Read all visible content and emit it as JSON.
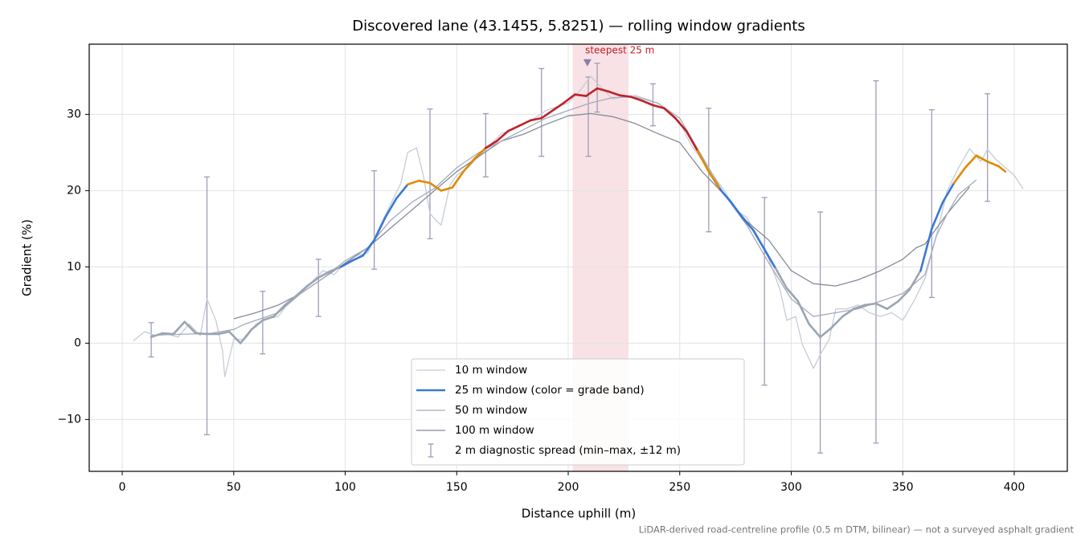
{
  "chart_data": {
    "type": "line",
    "title": "Discovered lane (43.1455, 5.8251) — rolling window gradients",
    "x_label": "Distance uphill (m)",
    "y_label": "Gradient (%)",
    "footnote": "LiDAR-derived road-centreline profile (0.5 m DTM, bilinear) — not a surveyed asphalt gradient",
    "xlim": [
      -14.8,
      423.8
    ],
    "ylim": [
      -16.8,
      39.2
    ],
    "xticks": [
      0,
      50,
      100,
      150,
      200,
      250,
      300,
      350,
      400
    ],
    "yticks": [
      {
        "value": -10,
        "label": "−10"
      },
      0,
      10,
      20,
      30
    ],
    "grid": true,
    "legend": "lower center",
    "highlight": {
      "xlim": [
        202,
        227
      ],
      "color": "#e8a0a8",
      "label": "steepest 25 m",
      "marker_x": 208.6,
      "marker_y": 36.7
    },
    "series": [
      {
        "name": "10 m window",
        "color": "#c5ccd6",
        "width": 1.3,
        "x": [
          5,
          10,
          15,
          20,
          25,
          30,
          35,
          38,
          42,
          45,
          46,
          50,
          55,
          60,
          65,
          70,
          75,
          80,
          85,
          90,
          95,
          100,
          105,
          110,
          115,
          120,
          125,
          128,
          132,
          135,
          138,
          141,
          143,
          147,
          150,
          155,
          160,
          165,
          170,
          175,
          180,
          185,
          190,
          195,
          200,
          205,
          210,
          215,
          220,
          225,
          230,
          235,
          240,
          245,
          250,
          255,
          260,
          265,
          270,
          275,
          280,
          285,
          290,
          295,
          298,
          302,
          305,
          310,
          313,
          317,
          320,
          325,
          330,
          335,
          340,
          345,
          350,
          355,
          360,
          365,
          370,
          375,
          380,
          385,
          388,
          392,
          396,
          400,
          404
        ],
        "values": [
          0.3,
          1.5,
          1.0,
          1.2,
          0.8,
          2.5,
          1.0,
          5.8,
          3.0,
          -1,
          -4.4,
          0.5,
          0.5,
          2.5,
          3.2,
          3.5,
          5.5,
          6.5,
          8.0,
          9.5,
          9.0,
          10.5,
          11.5,
          11.8,
          15,
          18,
          21,
          25,
          25.6,
          22,
          17,
          16,
          15.5,
          20.8,
          22,
          23,
          24.5,
          26,
          27.5,
          28,
          28.8,
          29.5,
          30.5,
          31,
          31.5,
          33,
          35,
          33.5,
          32,
          32.3,
          32.5,
          32,
          31.5,
          30.5,
          29,
          26,
          24,
          22,
          20,
          17.5,
          16.5,
          14,
          11,
          7,
          3,
          3.5,
          -0.2,
          -3.3,
          -1.5,
          0.5,
          4.5,
          4.5,
          5,
          4,
          3.5,
          4,
          3,
          5.5,
          8.5,
          14,
          20,
          23,
          25.5,
          23.8,
          25.4,
          24,
          23,
          22,
          20.2
        ]
      },
      {
        "name": "100 m window",
        "color": "#858b9b",
        "width": 1.3,
        "x": [
          50,
          60,
          70,
          80,
          90,
          100,
          110,
          120,
          130,
          140,
          150,
          160,
          170,
          180,
          190,
          200,
          210,
          220,
          230,
          240,
          250,
          260,
          270,
          280,
          290,
          300,
          310,
          320,
          330,
          340,
          350,
          356,
          360,
          370,
          380
        ],
        "values": [
          3.2,
          4.0,
          5.0,
          6.5,
          8.5,
          10.5,
          12.5,
          15.0,
          17.5,
          20.0,
          22.5,
          24.5,
          26.5,
          27.4,
          28.7,
          29.8,
          30.1,
          29.7,
          28.8,
          27.5,
          26.3,
          22.5,
          19.5,
          16.0,
          13.5,
          9.5,
          7.8,
          7.5,
          8.3,
          9.5,
          11.0,
          12.5,
          13,
          17,
          20.5
        ]
      },
      {
        "name": "50 m window",
        "color": "#a3abbb",
        "width": 1.3,
        "x": [
          13,
          20,
          30,
          40,
          50,
          55,
          60,
          70,
          80,
          90,
          100,
          110,
          120,
          130,
          140,
          150,
          160,
          170,
          180,
          190,
          200,
          210,
          220,
          230,
          240,
          250,
          260,
          270,
          280,
          290,
          300,
          310,
          320,
          330,
          340,
          350,
          360,
          365,
          370,
          375,
          383
        ],
        "values": [
          1.0,
          1.1,
          1.2,
          1.3,
          1.8,
          2.5,
          3.0,
          4.0,
          6.5,
          8.5,
          10.8,
          12.5,
          16.0,
          18.5,
          20.3,
          23,
          25,
          26.5,
          28,
          29.5,
          30.5,
          31.5,
          32.2,
          32.3,
          31.5,
          29.5,
          24.5,
          19.5,
          15.5,
          10.5,
          5.8,
          3.5,
          4.0,
          4.5,
          5.5,
          6.5,
          9.0,
          14,
          17,
          19.5,
          21.4
        ]
      },
      {
        "name": "25 m window (color = grade band)",
        "color": "#3a78d4",
        "width": 2.6,
        "band_edges": [
          10,
          20,
          26
        ],
        "band_colors": [
          "#9aa5b1",
          "#3a78d4",
          "#e08a00",
          "#c0202a"
        ],
        "x": [
          13,
          18,
          23,
          28,
          33,
          38,
          43,
          48,
          53,
          58,
          63,
          68,
          73,
          78,
          83,
          88,
          93,
          98,
          103,
          108,
          113,
          118,
          123,
          128,
          133,
          138,
          143,
          148,
          153,
          158,
          163,
          168,
          173,
          178,
          183,
          188,
          193,
          198,
          203,
          208,
          213,
          218,
          223,
          228,
          233,
          238,
          243,
          248,
          253,
          258,
          263,
          268,
          273,
          278,
          283,
          288,
          293,
          298,
          303,
          308,
          313,
          318,
          323,
          328,
          333,
          338,
          343,
          348,
          353,
          358,
          363,
          368,
          373,
          378,
          383,
          388,
          393,
          396
        ],
        "values": [
          0.8,
          1.3,
          1.2,
          2.8,
          1.3,
          1.2,
          1.2,
          1.5,
          0,
          1.8,
          3.0,
          3.5,
          5.0,
          6.2,
          7.5,
          8.6,
          9.4,
          10.0,
          10.8,
          11.5,
          13.5,
          16.5,
          19.0,
          20.8,
          21.3,
          21,
          20.0,
          20.4,
          22.5,
          24.2,
          25.6,
          26.5,
          27.8,
          28.5,
          29.2,
          29.5,
          30.5,
          31.5,
          32.6,
          32.4,
          33.4,
          33.0,
          32.5,
          32.3,
          31.8,
          31.2,
          30.8,
          29.5,
          27.8,
          25.2,
          22.5,
          20.2,
          18.5,
          16.5,
          14.8,
          12.3,
          9.8,
          7.2,
          5.5,
          2.5,
          0.8,
          2.0,
          3.5,
          4.5,
          5.0,
          5.2,
          4.5,
          5.5,
          7.0,
          9.5,
          15,
          18.5,
          21,
          23,
          24.6,
          23.8,
          23.2,
          22.5
        ]
      }
    ],
    "errorbars": {
      "name": "2 m diagnostic spread (min–max, ±12 m)",
      "color": "#a09cb8",
      "x": [
        13,
        38,
        63,
        88,
        113,
        138,
        163,
        188,
        209,
        213,
        238,
        263,
        288,
        313,
        338,
        363,
        388
      ],
      "high": [
        2.7,
        21.8,
        6.8,
        11,
        22.6,
        30.7,
        30.1,
        36,
        34.9,
        36.7,
        34,
        30.8,
        19.1,
        17.2,
        34.4,
        30.6,
        32.7
      ],
      "low": [
        -1.8,
        -12,
        -1.4,
        3.5,
        9.7,
        13.7,
        21.8,
        24.5,
        24.5,
        30.3,
        28.5,
        14.6,
        -5.5,
        -14.4,
        -13.1,
        6,
        18.6
      ]
    }
  }
}
